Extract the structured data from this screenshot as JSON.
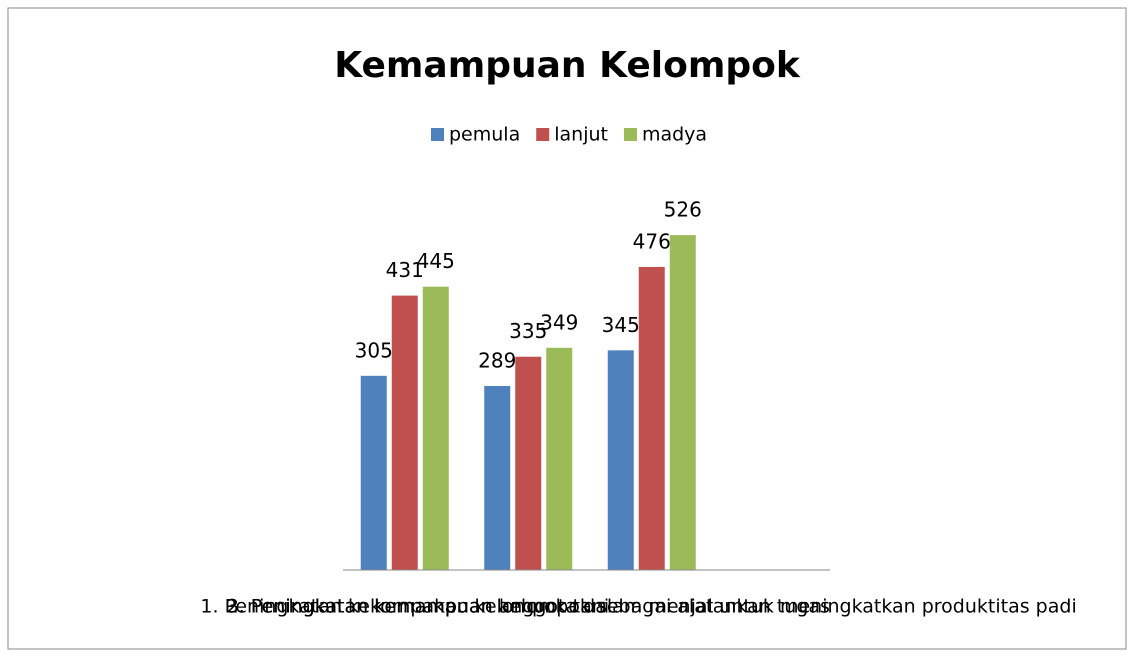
{
  "chart_data": {
    "type": "bar",
    "title": "Kemampuan Kelompok",
    "categories": [
      "1. Peningkatan kekompakan kelompok tani",
      "2. Peningkatan kemampuan anggota dalam menjalankan tugas",
      "3. Peningkatan kemampuan kelompok sebagai alat untuk meningkatkan produktitas padi",
      null
    ],
    "series": [
      {
        "name": "pemula",
        "color": "#4f81bd",
        "values": [
          305,
          289,
          345,
          null
        ]
      },
      {
        "name": "lanjut",
        "color": "#c0504d",
        "values": [
          431,
          335,
          476,
          null
        ]
      },
      {
        "name": "madya",
        "color": "#9bbb59",
        "values": [
          445,
          349,
          526,
          null
        ]
      }
    ],
    "ylim": [
      0,
      600
    ],
    "legend": "top"
  }
}
